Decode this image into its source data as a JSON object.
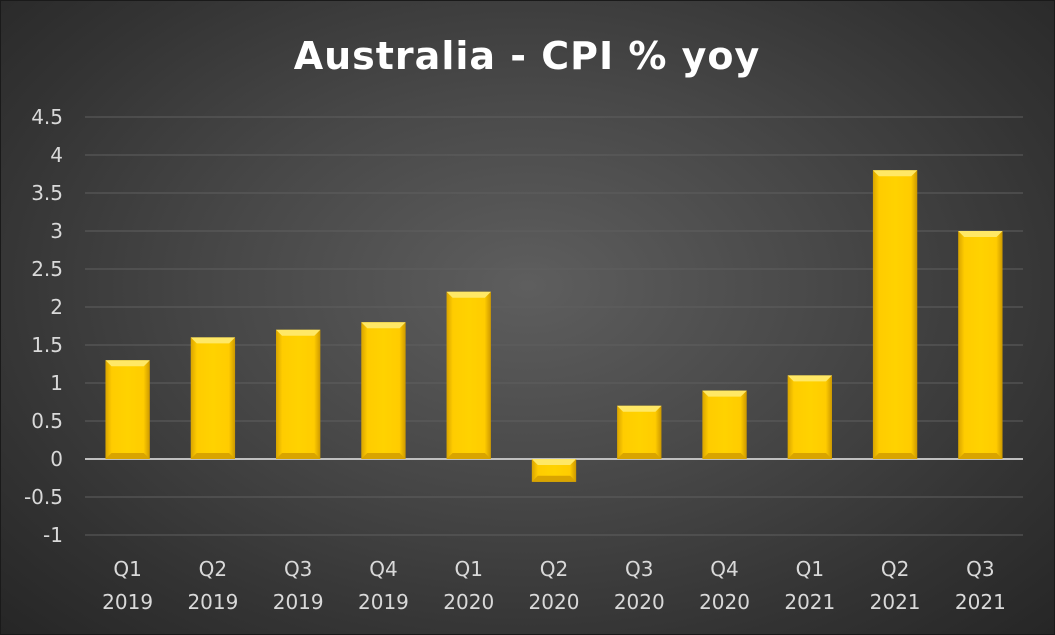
{
  "chart_data": {
    "type": "bar",
    "title": "Australia - CPI % yoy",
    "xlabel": "",
    "ylabel": "",
    "categories": [
      [
        "Q1",
        "2019"
      ],
      [
        "Q2",
        "2019"
      ],
      [
        "Q3",
        "2019"
      ],
      [
        "Q4",
        "2019"
      ],
      [
        "Q1",
        "2020"
      ],
      [
        "Q2",
        "2020"
      ],
      [
        "Q3",
        "2020"
      ],
      [
        "Q4",
        "2020"
      ],
      [
        "Q1",
        "2021"
      ],
      [
        "Q2",
        "2021"
      ],
      [
        "Q3",
        "2021"
      ]
    ],
    "values": [
      1.3,
      1.6,
      1.7,
      1.8,
      2.2,
      -0.3,
      0.7,
      0.9,
      1.1,
      3.8,
      3.0
    ],
    "ylim": [
      -1,
      4.5
    ],
    "yticks": [
      "4.5",
      "4",
      "3.5",
      "3",
      "2.5",
      "2",
      "1.5",
      "1",
      "0.5",
      "0",
      "-0.5",
      "-1"
    ],
    "grid": true,
    "colors": {
      "bar": "#ffcc00",
      "bar_light": "#ffe866",
      "bar_dark": "#d9a400",
      "grid": "#5f5f5f",
      "zero_line": "#bfbfbf",
      "text": "#d9d9d9",
      "title": "#ffffff"
    }
  }
}
